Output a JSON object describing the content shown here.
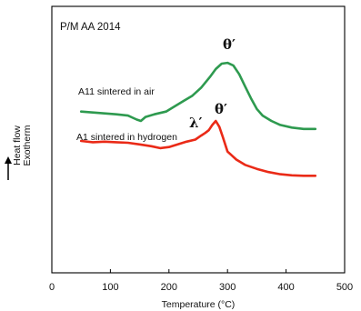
{
  "chart_data": {
    "type": "line",
    "panel_label": "P/M AA 2014",
    "xlabel": "Temperature (°C)",
    "ylabel": "Heat flow\nExotherm",
    "xlim": [
      0,
      500
    ],
    "xticks": [
      0,
      100,
      200,
      300,
      400,
      500
    ],
    "yticks": [],
    "grid": false,
    "series": [
      {
        "name": "A11 sintered in air",
        "color": "#2e9a4f",
        "x": [
          50,
          80,
          110,
          130,
          145,
          152,
          160,
          175,
          195,
          210,
          225,
          240,
          255,
          270,
          280,
          290,
          300,
          310,
          320,
          330,
          340,
          350,
          360,
          375,
          390,
          410,
          430,
          450
        ],
        "y": [
          0.605,
          0.6,
          0.595,
          0.59,
          0.575,
          0.57,
          0.585,
          0.595,
          0.605,
          0.625,
          0.645,
          0.665,
          0.695,
          0.735,
          0.765,
          0.785,
          0.788,
          0.778,
          0.745,
          0.7,
          0.655,
          0.615,
          0.59,
          0.57,
          0.555,
          0.545,
          0.54,
          0.54
        ]
      },
      {
        "name": "A1 sintered in hydrogen",
        "color": "#ea2a17",
        "x": [
          50,
          70,
          90,
          110,
          130,
          150,
          170,
          185,
          200,
          215,
          230,
          245,
          255,
          262,
          268,
          274,
          280,
          286,
          292,
          300,
          315,
          330,
          350,
          370,
          390,
          410,
          430,
          450
        ],
        "y": [
          0.495,
          0.49,
          0.492,
          0.49,
          0.488,
          0.482,
          0.475,
          0.468,
          0.472,
          0.482,
          0.492,
          0.5,
          0.515,
          0.525,
          0.535,
          0.555,
          0.57,
          0.548,
          0.51,
          0.455,
          0.425,
          0.405,
          0.39,
          0.378,
          0.37,
          0.366,
          0.364,
          0.364
        ]
      }
    ],
    "annotations": [
      {
        "text": "A11 sintered in air",
        "kind": "series-label"
      },
      {
        "text": "A1 sintered in hydrogen",
        "kind": "series-label"
      },
      {
        "text": "θ′",
        "kind": "peak",
        "x": 300
      },
      {
        "text": "λ′",
        "kind": "peak",
        "x": 255
      },
      {
        "text": "θ′",
        "kind": "peak",
        "x": 280
      }
    ]
  }
}
